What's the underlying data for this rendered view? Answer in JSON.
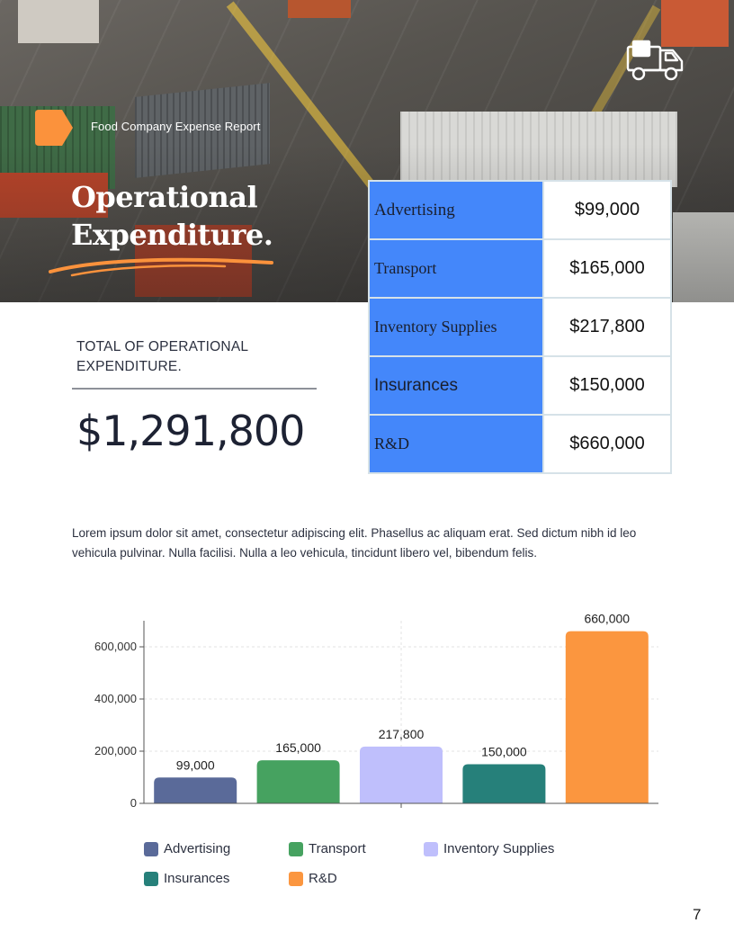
{
  "header": {
    "report_title": "Food Company Expense Report",
    "heading_line1": "Operational",
    "heading_line2": "Expenditure."
  },
  "colors": {
    "accent": "#fb923c",
    "table_label_bg": "#4487fa"
  },
  "expenses": [
    {
      "label": "Advertising",
      "amount": "$99,000"
    },
    {
      "label": "Transport",
      "amount": "$165,000"
    },
    {
      "label": "Inventory Supplies",
      "amount": "$217,800"
    },
    {
      "label": "Insurances",
      "amount": "$150,000"
    },
    {
      "label": "R&D",
      "amount": "$660,000"
    }
  ],
  "total": {
    "label": "TOTAL OF OPERATIONAL EXPENDITURE.",
    "amount": "$1,291,800"
  },
  "body_text": "Lorem ipsum dolor sit amet, consectetur adipiscing elit. Phasellus ac aliquam erat. Sed dictum nibh id leo vehicula pulvinar. Nulla facilisi. Nulla a leo vehicula, tincidunt libero vel, bibendum felis.",
  "chart_data": {
    "type": "bar",
    "categories": [
      "Advertising",
      "Transport",
      "Inventory Supplies",
      "Insurances",
      "R&D"
    ],
    "values": [
      99000,
      165000,
      217800,
      150000,
      660000
    ],
    "value_labels": [
      "99,000",
      "165,000",
      "217,800",
      "150,000",
      "660,000"
    ],
    "colors": [
      "#5a6a99",
      "#46a260",
      "#bfbffc",
      "#26807a",
      "#fb963f"
    ],
    "y_ticks": [
      "0",
      "200,000",
      "400,000",
      "600,000"
    ],
    "y_tick_values": [
      0,
      200000,
      400000,
      600000
    ],
    "ylim": [
      0,
      700000
    ],
    "grid": true,
    "legend_position": "bottom",
    "title": "",
    "xlabel": "",
    "ylabel": ""
  },
  "page_number": "7"
}
